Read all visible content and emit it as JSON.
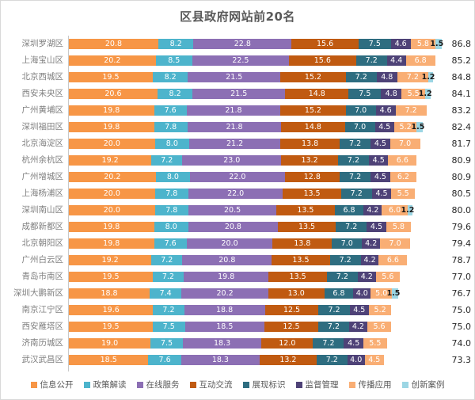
{
  "page": {
    "background_color": "#ffffff",
    "border_color": "#d9d9d9",
    "axis_color": "#c9c9c9",
    "title_color": "#595959",
    "category_label_color": "#7f7f7f",
    "total_label_color": "#262626",
    "segment_label_color": "#ffffff",
    "small_segment_label_color": "#1a1a1a"
  },
  "chart_data": {
    "type": "bar",
    "orientation": "horizontal",
    "stacked": true,
    "grid": false,
    "legend_position": "bottom",
    "title": "区县政府网站前20名",
    "xlim": [
      0,
      88
    ],
    "categories": [
      "深圳罗湖区",
      "上海宝山区",
      "北京西城区",
      "西安未央区",
      "广州黄埔区",
      "深圳福田区",
      "北京海淀区",
      "杭州余杭区",
      "广州增城区",
      "上海杨浦区",
      "深圳南山区",
      "成都新都区",
      "北京朝阳区",
      "广州白云区",
      "青岛市南区",
      "深圳大鹏新区",
      "南京江宁区",
      "西安雁塔区",
      "济南历城区",
      "武汉武昌区"
    ],
    "totals": [
      86.8,
      85.2,
      84.8,
      84.1,
      83.2,
      82.4,
      81.7,
      80.9,
      80.9,
      80.5,
      80.0,
      79.6,
      79.4,
      78.7,
      77.0,
      76.7,
      75.0,
      75.0,
      74.0,
      73.3
    ],
    "series": [
      {
        "name": "信息公开",
        "color": "#F79646",
        "values": [
          20.8,
          20.2,
          19.5,
          20.6,
          19.8,
          19.8,
          20.0,
          19.2,
          20.2,
          20.0,
          20.0,
          19.8,
          19.8,
          19.2,
          19.5,
          18.8,
          19.6,
          19.5,
          19.0,
          18.5
        ]
      },
      {
        "name": "政策解读",
        "color": "#4DB4CC",
        "values": [
          8.2,
          8.5,
          8.2,
          8.2,
          7.6,
          7.8,
          8.0,
          7.2,
          8.0,
          7.8,
          7.8,
          8.0,
          7.6,
          7.2,
          7.2,
          7.4,
          7.2,
          7.5,
          7.5,
          7.6
        ]
      },
      {
        "name": "在线服务",
        "color": "#8C6FB4",
        "values": [
          22.8,
          22.5,
          21.5,
          21.5,
          21.8,
          21.8,
          21.2,
          23.0,
          22.0,
          22.0,
          20.5,
          20.8,
          20.0,
          20.8,
          19.8,
          20.2,
          18.8,
          18.5,
          18.3,
          18.3
        ]
      },
      {
        "name": "互动交流",
        "color": "#C05A11",
        "values": [
          15.6,
          15.6,
          15.2,
          14.8,
          15.2,
          14.8,
          13.8,
          13.2,
          12.8,
          13.5,
          13.5,
          13.5,
          13.8,
          13.5,
          13.5,
          13.0,
          12.5,
          12.5,
          12.0,
          13.2
        ]
      },
      {
        "name": "展现标识",
        "color": "#2E6D80",
        "values": [
          7.5,
          7.2,
          7.2,
          7.5,
          7.0,
          7.0,
          7.2,
          7.2,
          7.2,
          7.2,
          6.8,
          7.2,
          7.0,
          7.2,
          7.2,
          6.8,
          7.2,
          7.2,
          7.2,
          7.2
        ]
      },
      {
        "name": "监督管理",
        "color": "#4E4277",
        "values": [
          4.6,
          4.4,
          4.8,
          4.8,
          4.6,
          4.5,
          4.5,
          4.5,
          4.5,
          4.5,
          4.2,
          4.5,
          4.2,
          4.2,
          4.2,
          4.0,
          4.5,
          4.2,
          4.5,
          4.0
        ]
      },
      {
        "name": "传播应用",
        "color": "#F9AE74",
        "values": [
          5.8,
          6.8,
          7.2,
          5.5,
          7.2,
          5.2,
          7.0,
          6.6,
          6.2,
          5.5,
          6.0,
          5.8,
          7.0,
          6.6,
          5.6,
          5.0,
          5.2,
          5.6,
          5.5,
          4.5
        ]
      },
      {
        "name": "创新案例",
        "color": "#9CD6E4",
        "values": [
          1.5,
          0,
          1.2,
          1.2,
          0,
          1.5,
          0,
          0,
          0,
          0,
          1.2,
          0,
          0,
          0,
          0,
          1.5,
          0,
          0,
          0,
          0
        ]
      }
    ]
  }
}
